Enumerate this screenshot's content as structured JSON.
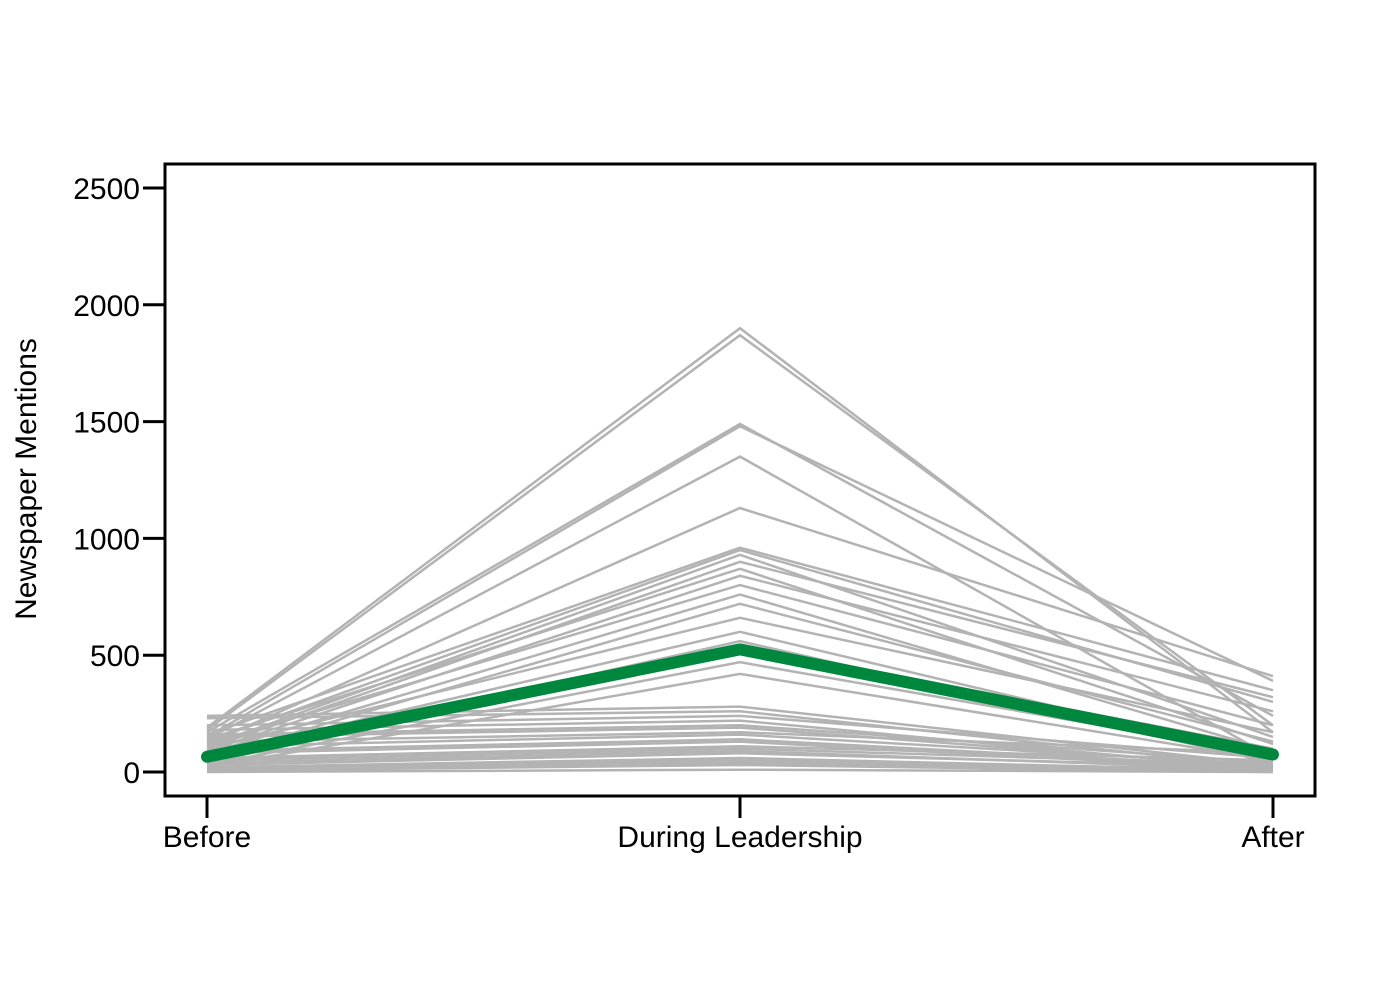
{
  "chart_data": {
    "type": "line",
    "title": "",
    "xlabel": "",
    "ylabel": "Newspaper Mentions",
    "categories": [
      "Before",
      "During Leadership",
      "After"
    ],
    "ylim": [
      -100,
      2600
    ],
    "yticks": [
      0,
      500,
      1000,
      1500,
      2000,
      2500
    ],
    "ytick_labels": [
      "0",
      "500",
      "1000",
      "1500",
      "2000",
      "2500"
    ],
    "grid": false,
    "legend": "none",
    "background_color": "#b3b3b3",
    "highlight_color": "#00873e",
    "background_series": [
      [
        190,
        1900,
        170
      ],
      [
        180,
        1870,
        200
      ],
      [
        170,
        1490,
        240
      ],
      [
        150,
        1480,
        390
      ],
      [
        140,
        1350,
        60
      ],
      [
        120,
        1130,
        410
      ],
      [
        160,
        960,
        350
      ],
      [
        130,
        950,
        300
      ],
      [
        110,
        930,
        150
      ],
      [
        100,
        900,
        320
      ],
      [
        140,
        870,
        120
      ],
      [
        90,
        840,
        260
      ],
      [
        120,
        800,
        200
      ],
      [
        80,
        760,
        90
      ],
      [
        60,
        720,
        130
      ],
      [
        100,
        660,
        170
      ],
      [
        70,
        600,
        60
      ],
      [
        50,
        560,
        40
      ],
      [
        40,
        540,
        100
      ],
      [
        30,
        470,
        70
      ],
      [
        20,
        420,
        50
      ],
      [
        240,
        280,
        30
      ],
      [
        230,
        260,
        20
      ],
      [
        200,
        240,
        60
      ],
      [
        180,
        220,
        10
      ],
      [
        160,
        200,
        40
      ],
      [
        150,
        190,
        20
      ],
      [
        130,
        170,
        80
      ],
      [
        110,
        160,
        30
      ],
      [
        90,
        140,
        20
      ],
      [
        80,
        130,
        10
      ],
      [
        60,
        110,
        50
      ],
      [
        50,
        100,
        30
      ],
      [
        40,
        90,
        10
      ],
      [
        30,
        80,
        20
      ],
      [
        20,
        60,
        5
      ],
      [
        15,
        50,
        10
      ],
      [
        10,
        40,
        5
      ],
      [
        5,
        30,
        0
      ],
      [
        0,
        10,
        0
      ]
    ],
    "highlight_series": [
      65,
      525,
      75
    ]
  }
}
